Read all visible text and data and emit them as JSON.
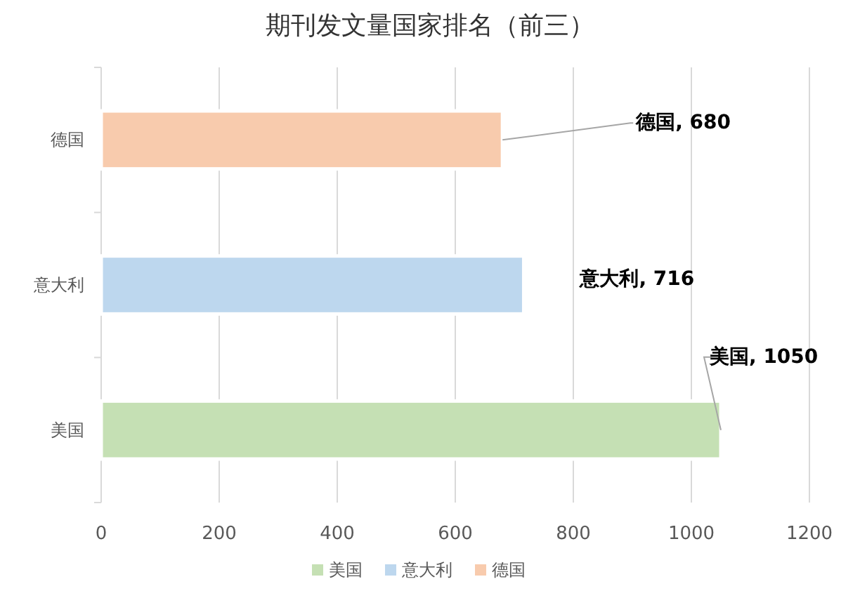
{
  "chart_data": {
    "type": "bar",
    "orientation": "horizontal",
    "stacked": true,
    "title": "期刊发文量国家排名（前三）",
    "categories": [
      "德国",
      "意大利",
      "美国"
    ],
    "series": [
      {
        "name": "美国",
        "color": "#c5e0b4",
        "values": [
          null,
          null,
          1050
        ],
        "value_labels": [
          null,
          null,
          "美国, 1050"
        ]
      },
      {
        "name": "意大利",
        "color": "#bdd7ee",
        "values": [
          null,
          716,
          null
        ],
        "value_labels": [
          null,
          "意大利, 716",
          null
        ]
      },
      {
        "name": "德国",
        "color": "#f8cbad",
        "values": [
          680,
          null,
          null
        ],
        "value_labels": [
          "德国, 680",
          null,
          null
        ]
      }
    ],
    "xlim": [
      0,
      1200
    ],
    "xticks": [
      0,
      200,
      400,
      600,
      800,
      1000,
      1200
    ],
    "grid": "x",
    "legend": "bottom"
  }
}
